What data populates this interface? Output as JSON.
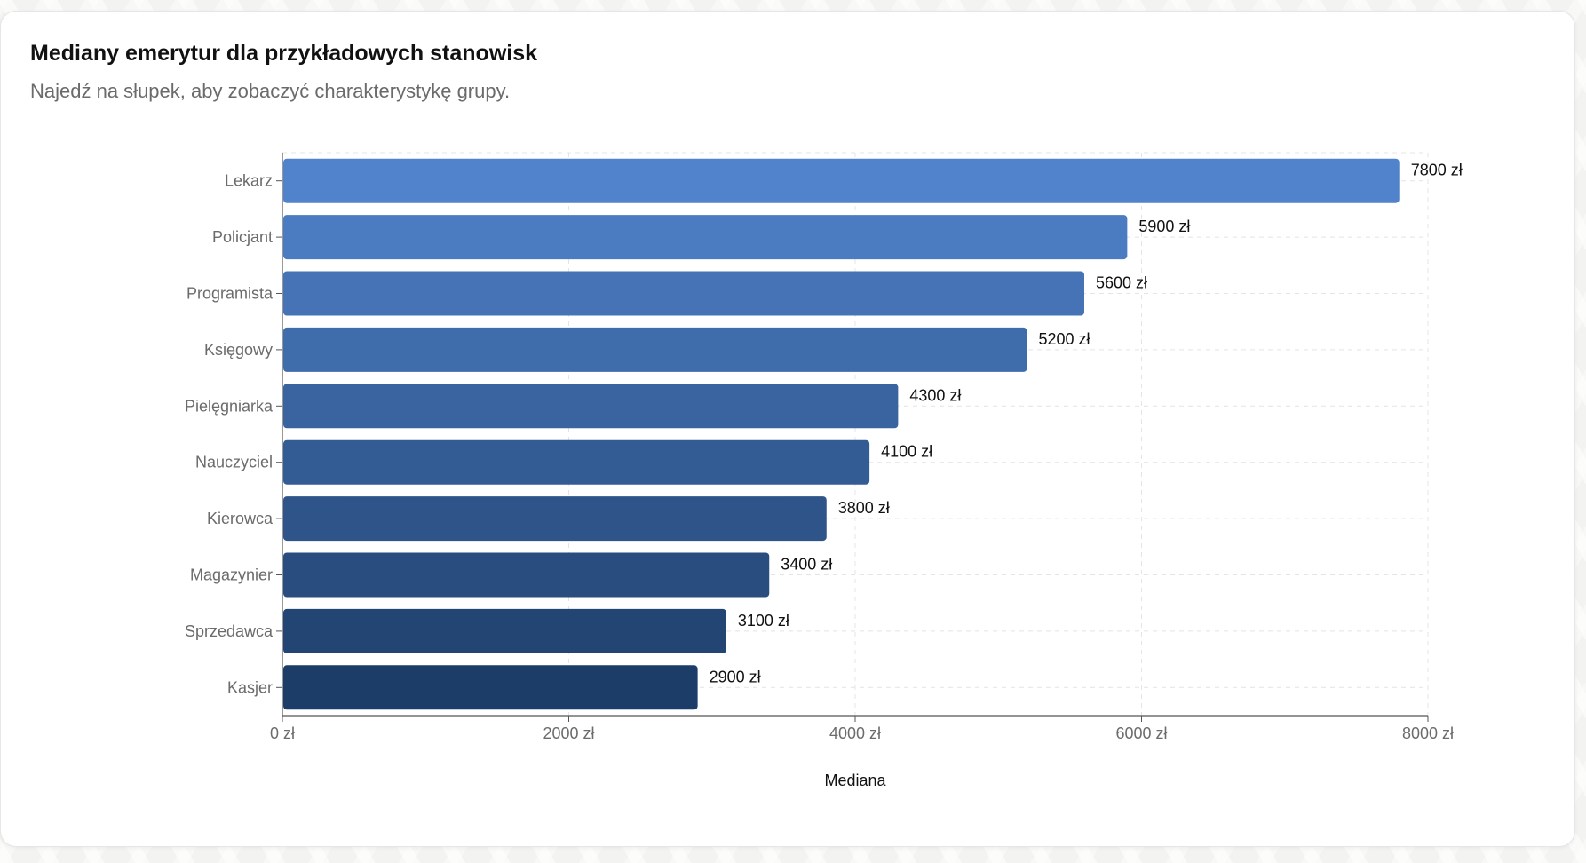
{
  "header": {
    "title": "Mediany emerytur dla przykładowych stanowisk",
    "subtitle": "Najedź na słupek, aby zobaczyć charakterystykę grupy."
  },
  "chart_data": {
    "type": "bar",
    "orientation": "horizontal",
    "title": "Mediany emerytur dla przykładowych stanowisk",
    "subtitle": "Najedź na słupek, aby zobaczyć charakterystykę grupy.",
    "categories": [
      "Lekarz",
      "Policjant",
      "Programista",
      "Księgowy",
      "Pielęgniarka",
      "Nauczyciel",
      "Kierowca",
      "Magazynier",
      "Sprzedawca",
      "Kasjer"
    ],
    "values": [
      7800,
      5900,
      5600,
      5200,
      4300,
      4100,
      3800,
      3400,
      3100,
      2900
    ],
    "value_suffix": " zł",
    "data_labels": [
      "7800 zł",
      "5900 zł",
      "5600 zł",
      "5200 zł",
      "4300 zł",
      "4100 zł",
      "3800 zł",
      "3400 zł",
      "3100 zł",
      "2900 zł"
    ],
    "xlabel": "Mediana",
    "ylabel": "",
    "xlim": [
      0,
      8000
    ],
    "x_ticks": [
      0,
      2000,
      4000,
      6000,
      8000
    ],
    "x_tick_labels": [
      "0 zł",
      "2000 zł",
      "4000 zł",
      "6000 zł",
      "8000 zł"
    ],
    "grid": true,
    "legend": "none",
    "colors": {
      "bar_top": "#5183cc",
      "bar_bottom": "#1c3d68",
      "axis": "#555555",
      "grid": "#e4e4e4",
      "tick_text": "#6b6b6b",
      "label_text": "#111111"
    }
  }
}
